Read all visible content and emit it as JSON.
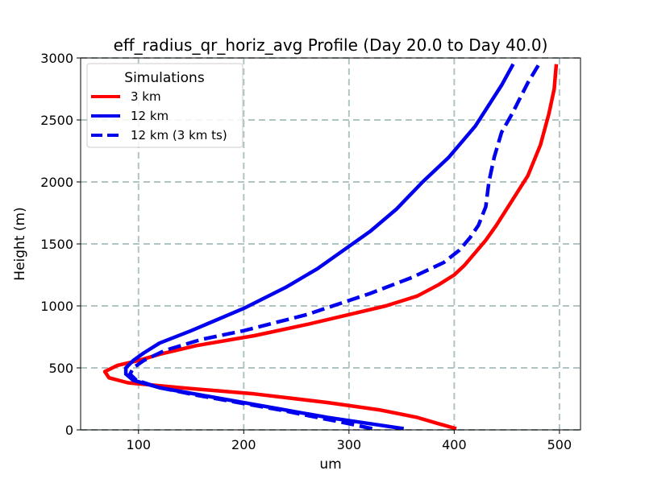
{
  "chart_data": {
    "type": "line",
    "title": "eff_radius_qr_horiz_avg Profile (Day 20.0 to Day 40.0)",
    "xlabel": "um",
    "ylabel": "Height (m)",
    "xlim": [
      45,
      520
    ],
    "ylim": [
      0,
      3000
    ],
    "xticks": [
      100,
      200,
      300,
      400,
      500
    ],
    "yticks": [
      0,
      500,
      1000,
      1500,
      2000,
      2500,
      3000
    ],
    "grid": true,
    "legend": {
      "title": "Simulations",
      "placement": "upper-left",
      "entries": [
        "3 km",
        "12 km",
        "12 km (3 km ts)"
      ]
    },
    "series": [
      {
        "name": "3 km",
        "color": "#ff0000",
        "style": "solid",
        "points": [
          [
            402,
            10
          ],
          [
            385,
            50
          ],
          [
            365,
            100
          ],
          [
            330,
            160
          ],
          [
            280,
            220
          ],
          [
            210,
            290
          ],
          [
            140,
            340
          ],
          [
            90,
            380
          ],
          [
            72,
            420
          ],
          [
            68,
            470
          ],
          [
            80,
            520
          ],
          [
            100,
            560
          ],
          [
            120,
            610
          ],
          [
            155,
            680
          ],
          [
            210,
            760
          ],
          [
            260,
            850
          ],
          [
            300,
            930
          ],
          [
            335,
            1000
          ],
          [
            365,
            1080
          ],
          [
            385,
            1170
          ],
          [
            400,
            1250
          ],
          [
            410,
            1330
          ],
          [
            420,
            1430
          ],
          [
            430,
            1530
          ],
          [
            440,
            1650
          ],
          [
            455,
            1850
          ],
          [
            470,
            2050
          ],
          [
            482,
            2300
          ],
          [
            490,
            2550
          ],
          [
            495,
            2750
          ],
          [
            497,
            2950
          ]
        ]
      },
      {
        "name": "12 km",
        "color": "#0000ee",
        "style": "solid",
        "points": [
          [
            352,
            10
          ],
          [
            320,
            50
          ],
          [
            280,
            100
          ],
          [
            240,
            160
          ],
          [
            200,
            220
          ],
          [
            160,
            280
          ],
          [
            120,
            340
          ],
          [
            95,
            400
          ],
          [
            88,
            450
          ],
          [
            88,
            500
          ],
          [
            95,
            560
          ],
          [
            105,
            620
          ],
          [
            120,
            700
          ],
          [
            150,
            800
          ],
          [
            200,
            980
          ],
          [
            240,
            1150
          ],
          [
            270,
            1300
          ],
          [
            295,
            1450
          ],
          [
            320,
            1600
          ],
          [
            345,
            1780
          ],
          [
            370,
            2000
          ],
          [
            395,
            2200
          ],
          [
            420,
            2450
          ],
          [
            445,
            2780
          ],
          [
            456,
            2950
          ]
        ]
      },
      {
        "name": "12 km (3 km ts)",
        "color": "#0000ee",
        "style": "dashed",
        "points": [
          [
            322,
            10
          ],
          [
            300,
            50
          ],
          [
            270,
            100
          ],
          [
            235,
            160
          ],
          [
            195,
            220
          ],
          [
            155,
            280
          ],
          [
            120,
            340
          ],
          [
            98,
            400
          ],
          [
            92,
            450
          ],
          [
            95,
            500
          ],
          [
            105,
            560
          ],
          [
            125,
            640
          ],
          [
            160,
            730
          ],
          [
            200,
            800
          ],
          [
            260,
            930
          ],
          [
            320,
            1100
          ],
          [
            360,
            1230
          ],
          [
            390,
            1350
          ],
          [
            405,
            1450
          ],
          [
            415,
            1550
          ],
          [
            423,
            1650
          ],
          [
            430,
            1800
          ],
          [
            433,
            2000
          ],
          [
            438,
            2200
          ],
          [
            445,
            2400
          ],
          [
            455,
            2550
          ],
          [
            470,
            2800
          ],
          [
            482,
            2970
          ]
        ]
      }
    ]
  }
}
